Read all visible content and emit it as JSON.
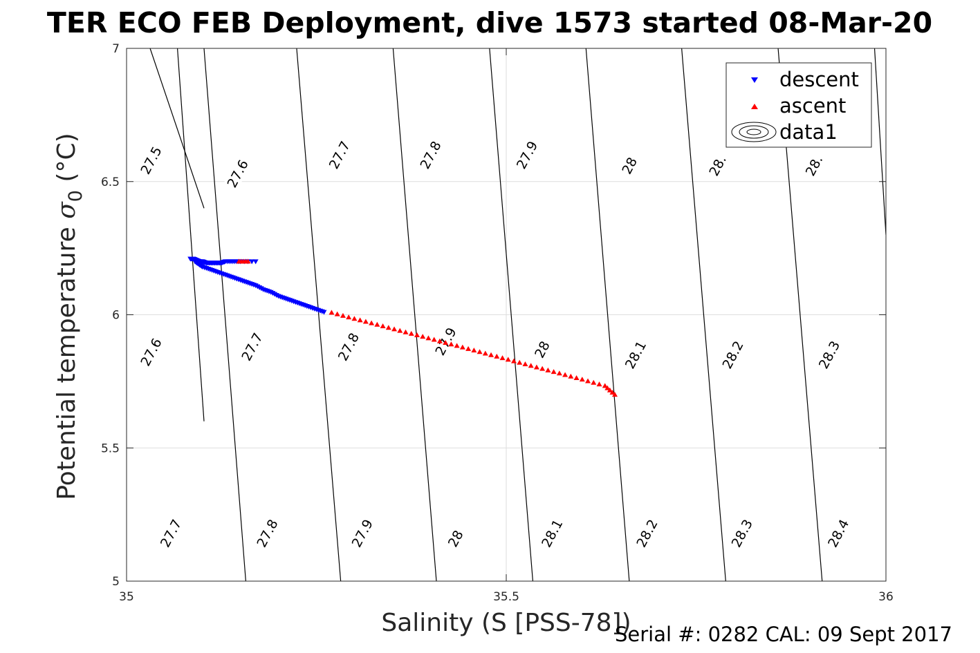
{
  "title": "TER ECO FEB Deployment, dive 1573 started 08-Mar-20",
  "footer": "Serial #: 0282  CAL: 09 Sept 2017",
  "chart_data": {
    "type": "scatter",
    "xlabel": "Salinity (S [PSS-78])",
    "ylabel_main": "Potential temperature ",
    "ylabel_sigma": "σ",
    "ylabel_sub": "0",
    "ylabel_unit": " (°C)",
    "xlim": [
      35,
      36
    ],
    "ylim": [
      5,
      7
    ],
    "xticks": [
      35,
      35.5,
      36
    ],
    "xtick_labels": [
      "35",
      "35.5",
      "36"
    ],
    "yticks": [
      5,
      5.5,
      6,
      6.5,
      7
    ],
    "ytick_labels": [
      "5",
      "5.5",
      "6",
      "6.5",
      "7"
    ],
    "grid": true,
    "legend_position": "top-right",
    "legend": [
      "descent",
      "ascent",
      "data1"
    ],
    "colors": {
      "descent": "#0000ff",
      "ascent": "#ff0000",
      "contour": "#000000",
      "grid": "#dedede",
      "axis": "#262626"
    },
    "series": [
      {
        "name": "descent",
        "marker": "triangle-down",
        "x": [
          35.084,
          35.088,
          35.092,
          35.096,
          35.1,
          35.105,
          35.11,
          35.115,
          35.12,
          35.125,
          35.13,
          35.14,
          35.15,
          35.17,
          35.09,
          35.095,
          35.1,
          35.11,
          35.12,
          35.13,
          35.14,
          35.15,
          35.16,
          35.17,
          35.18,
          35.19,
          35.2,
          35.21,
          35.22,
          35.23,
          35.24,
          35.25,
          35.26
        ],
        "y": [
          6.21,
          6.21,
          6.205,
          6.2,
          6.2,
          6.195,
          6.195,
          6.195,
          6.195,
          6.195,
          6.2,
          6.2,
          6.2,
          6.2,
          6.2,
          6.19,
          6.18,
          6.17,
          6.16,
          6.15,
          6.14,
          6.13,
          6.12,
          6.11,
          6.095,
          6.085,
          6.07,
          6.06,
          6.05,
          6.04,
          6.03,
          6.02,
          6.01
        ]
      },
      {
        "name": "ascent",
        "marker": "triangle-up",
        "x": [
          35.148,
          35.16,
          35.27,
          35.3,
          35.33,
          35.36,
          35.39,
          35.42,
          35.45,
          35.48,
          35.51,
          35.54,
          35.57,
          35.6,
          35.63,
          35.643
        ],
        "y": [
          6.2,
          6.2,
          6.008,
          5.985,
          5.963,
          5.94,
          5.918,
          5.895,
          5.872,
          5.849,
          5.826,
          5.803,
          5.78,
          5.757,
          5.733,
          5.7
        ]
      }
    ],
    "contours": [
      {
        "label": "27.5",
        "x": [
          35.031,
          35.102
        ],
        "y": [
          7.0,
          6.4
        ]
      },
      {
        "label": "27.6",
        "x": [
          35.067,
          35.102
        ],
        "y": [
          7.0,
          5.6
        ]
      },
      {
        "label": "27.7",
        "x": [
          35.102,
          35.157
        ],
        "y": [
          7.0,
          5.0
        ]
      },
      {
        "label": "27.8",
        "x": [
          35.224,
          35.282
        ],
        "y": [
          7.0,
          5.0
        ]
      },
      {
        "label": "27.9",
        "x": [
          35.351,
          35.408
        ],
        "y": [
          7.0,
          5.0
        ]
      },
      {
        "label": "28",
        "x": [
          35.478,
          35.535
        ],
        "y": [
          7.0,
          5.0
        ]
      },
      {
        "label": "28.1",
        "x": [
          35.605,
          35.662
        ],
        "y": [
          7.0,
          5.0
        ]
      },
      {
        "label": "28.2",
        "x": [
          35.731,
          35.789
        ],
        "y": [
          7.0,
          5.0
        ]
      },
      {
        "label": "28.3",
        "x": [
          35.858,
          35.916
        ],
        "y": [
          7.0,
          5.0
        ]
      },
      {
        "label": "28.4",
        "x": [
          35.985,
          36.0
        ],
        "y": [
          7.0,
          6.3
        ]
      }
    ],
    "contour_labels": [
      {
        "text": "27.5",
        "x": 35.032,
        "y": 6.58
      },
      {
        "text": "27.6",
        "x": 35.146,
        "y": 6.53
      },
      {
        "text": "27.7",
        "x": 35.28,
        "y": 6.6
      },
      {
        "text": "27.8",
        "x": 35.4,
        "y": 6.6
      },
      {
        "text": "27.9",
        "x": 35.527,
        "y": 6.6
      },
      {
        "text": "28",
        "x": 35.662,
        "y": 6.56
      },
      {
        "text": "28.",
        "x": 35.778,
        "y": 6.56
      },
      {
        "text": "28.",
        "x": 35.905,
        "y": 6.56
      },
      {
        "text": "27.6",
        "x": 35.032,
        "y": 5.86
      },
      {
        "text": "27.7",
        "x": 35.165,
        "y": 5.88
      },
      {
        "text": "27.8",
        "x": 35.292,
        "y": 5.88
      },
      {
        "text": "27.9",
        "x": 35.42,
        "y": 5.9
      },
      {
        "text": "28",
        "x": 35.547,
        "y": 5.87
      },
      {
        "text": "28.1",
        "x": 35.67,
        "y": 5.85
      },
      {
        "text": "28.2",
        "x": 35.798,
        "y": 5.85
      },
      {
        "text": "28.3",
        "x": 35.925,
        "y": 5.85
      },
      {
        "text": "27.7",
        "x": 35.058,
        "y": 5.18
      },
      {
        "text": "27.8",
        "x": 35.185,
        "y": 5.18
      },
      {
        "text": "27.9",
        "x": 35.31,
        "y": 5.18
      },
      {
        "text": "28",
        "x": 35.433,
        "y": 5.16
      },
      {
        "text": "28.1",
        "x": 35.56,
        "y": 5.18
      },
      {
        "text": "28.2",
        "x": 35.685,
        "y": 5.18
      },
      {
        "text": "28.3",
        "x": 35.81,
        "y": 5.18
      },
      {
        "text": "28.4",
        "x": 35.937,
        "y": 5.18
      }
    ]
  }
}
